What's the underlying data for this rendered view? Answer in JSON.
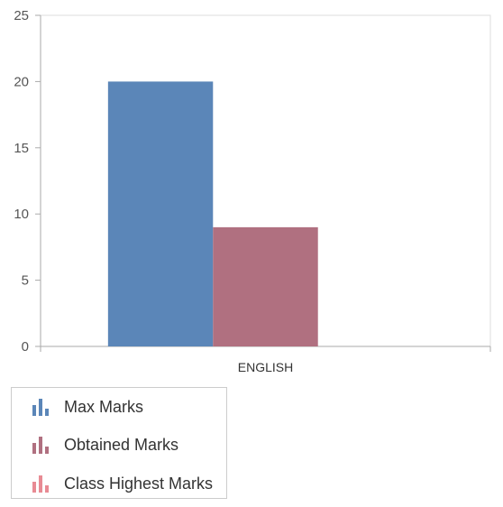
{
  "chart_data": {
    "type": "bar",
    "categories": [
      "ENGLISH"
    ],
    "series": [
      {
        "name": "Max Marks",
        "values": [
          20
        ],
        "color": "#5b86b8"
      },
      {
        "name": "Obtained Marks",
        "values": [
          9
        ],
        "color": "#b07080"
      },
      {
        "name": "Class Highest Marks",
        "values": [
          0
        ],
        "color": "#e88b94"
      }
    ],
    "title": "",
    "xlabel": "",
    "ylabel": "",
    "ylim": [
      0,
      25
    ],
    "yticks": [
      0,
      5,
      10,
      15,
      20,
      25
    ],
    "grid": false,
    "legend_position": "bottom-left"
  },
  "legend": {
    "items": [
      {
        "label": "Max Marks",
        "icon": "bar-chart-icon",
        "color": "#5b86b8"
      },
      {
        "label": "Obtained Marks",
        "icon": "bar-chart-icon",
        "color": "#b07080"
      },
      {
        "label": "Class Highest Marks",
        "icon": "bar-chart-icon",
        "color": "#e88b94"
      }
    ]
  }
}
